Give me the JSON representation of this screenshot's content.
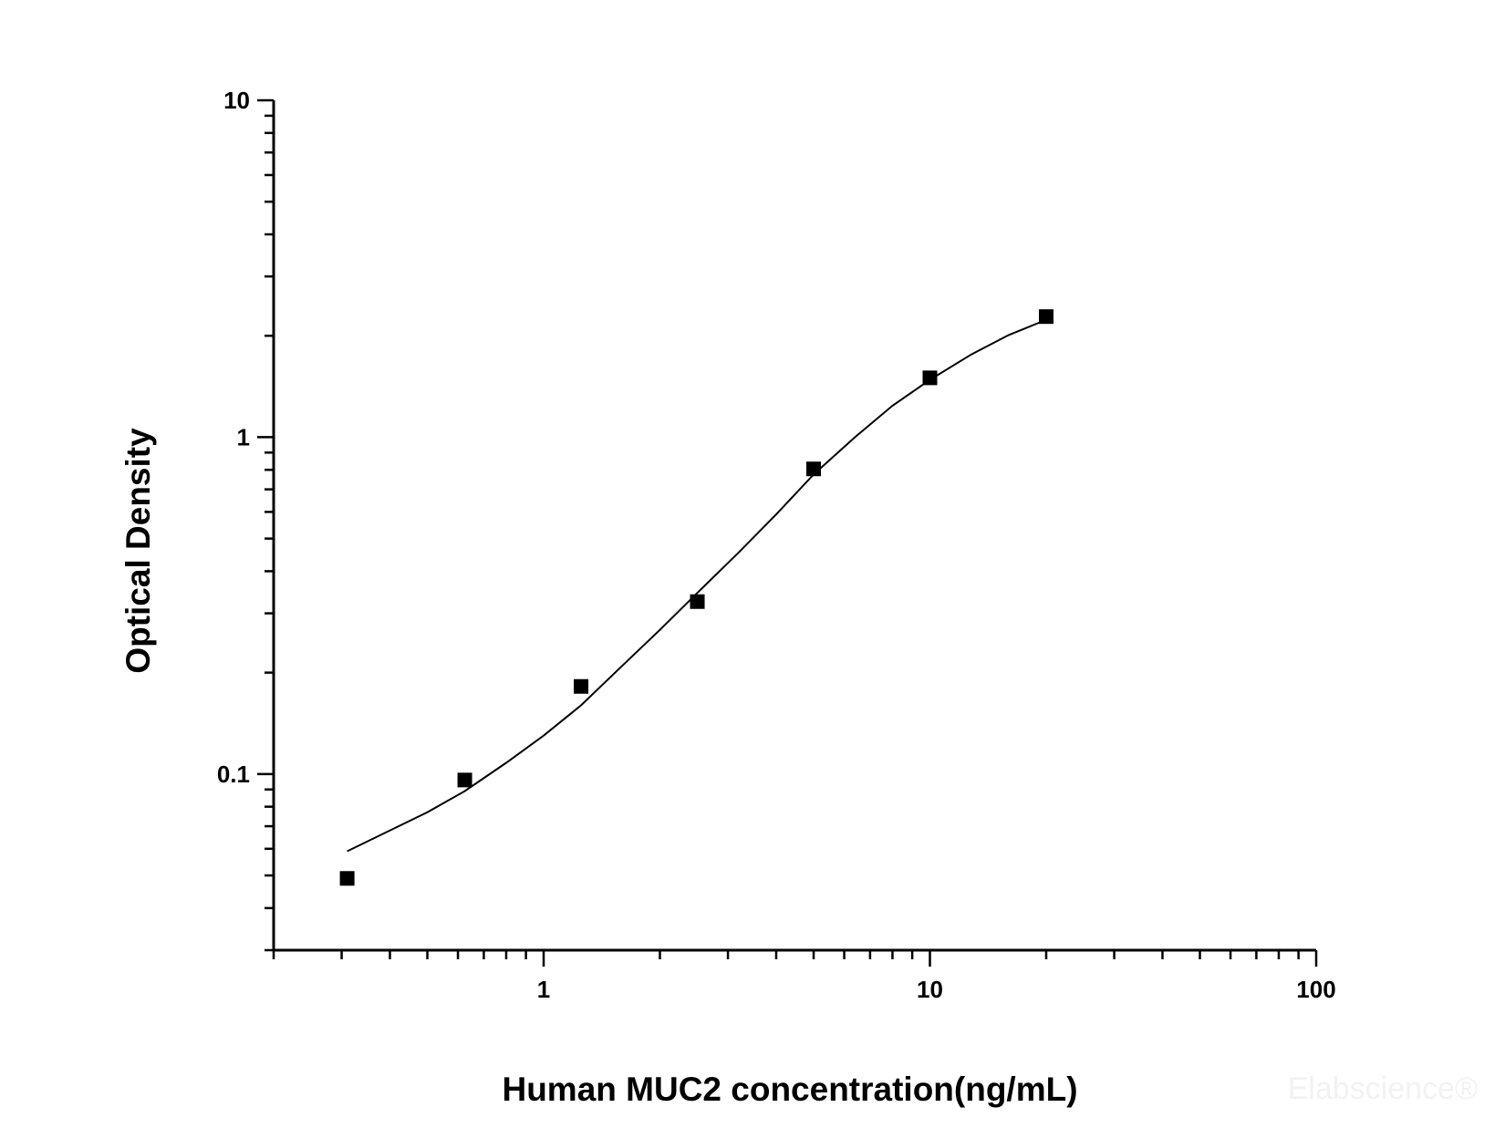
{
  "chart_data": {
    "type": "scatter",
    "xlabel": "Human MUC2 concentration(ng/mL)",
    "ylabel": "Optical Density",
    "x_scale": "log",
    "y_scale": "log",
    "xlim": [
      0.2,
      100
    ],
    "ylim": [
      0.03,
      10
    ],
    "x_ticks": [
      {
        "value": 1,
        "label": "1"
      },
      {
        "value": 10,
        "label": "10"
      },
      {
        "value": 100,
        "label": "100"
      }
    ],
    "y_ticks": [
      {
        "value": 0.1,
        "label": "0.1"
      },
      {
        "value": 1,
        "label": "1"
      },
      {
        "value": 10,
        "label": "10"
      }
    ],
    "grid": false,
    "series": [
      {
        "kind": "points",
        "marker": "square",
        "color": "#000000",
        "x": [
          0.31,
          0.625,
          1.25,
          2.5,
          5,
          10,
          20
        ],
        "y": [
          0.049,
          0.096,
          0.182,
          0.325,
          0.805,
          1.5,
          2.28
        ]
      },
      {
        "kind": "fit-curve",
        "color": "#000000",
        "x": [
          0.31,
          0.5,
          0.625,
          0.8,
          1.0,
          1.25,
          1.6,
          2.0,
          2.5,
          3.2,
          4.0,
          5.0,
          6.4,
          8.0,
          10.0,
          12.8,
          16.0,
          20.0
        ],
        "y": [
          0.059,
          0.077,
          0.089,
          0.108,
          0.13,
          0.16,
          0.21,
          0.268,
          0.345,
          0.455,
          0.59,
          0.775,
          1.0,
          1.24,
          1.48,
          1.76,
          2.01,
          2.23
        ]
      }
    ]
  },
  "watermark": "Elabscience®"
}
